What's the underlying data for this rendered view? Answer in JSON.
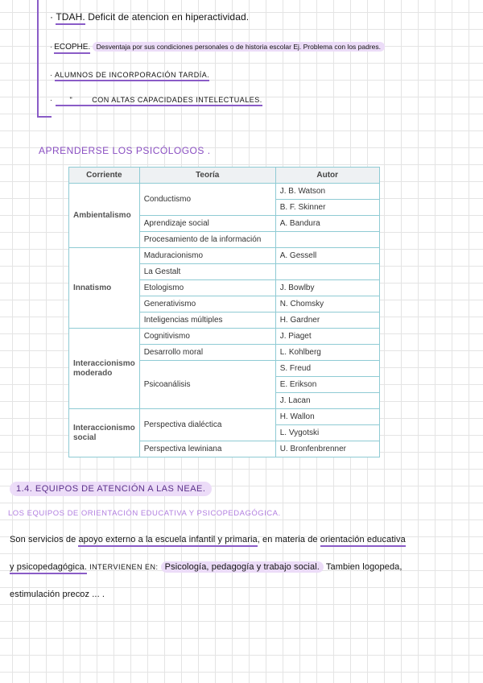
{
  "notes": {
    "line1": {
      "term": "TDAH.",
      "text": "Deficit de atencion en hiperactividad."
    },
    "line2": {
      "term": "ECOPHE.",
      "text": "Desventaja por sus condiciones personales o de historia escolar Ej. Problema con los padres."
    },
    "line3": "Alumnos de incorporación Tardía.",
    "line4": {
      "ditto": "\"",
      "text": "Con altas capacidades intelectuales."
    }
  },
  "section_title": "Aprenderse los psicólogos .",
  "table": {
    "headers": [
      "Corriente",
      "Teoría",
      "Autor"
    ],
    "groups": [
      {
        "corriente": "Ambientalismo",
        "rows": [
          {
            "teoria": "Conductismo",
            "autores": [
              "J. B. Watson",
              "B. F. Skinner"
            ]
          },
          {
            "teoria": "Aprendizaje social",
            "autores": [
              "A. Bandura"
            ]
          },
          {
            "teoria": "Procesamiento de la información",
            "autores": [
              ""
            ]
          }
        ]
      },
      {
        "corriente": "Innatismo",
        "rows": [
          {
            "teoria": "Maduracionismo",
            "autores": [
              "A. Gessell"
            ]
          },
          {
            "teoria": "La Gestalt",
            "autores": [
              ""
            ]
          },
          {
            "teoria": "Etologismo",
            "autores": [
              "J. Bowlby"
            ]
          },
          {
            "teoria": "Generativismo",
            "autores": [
              "N. Chomsky"
            ]
          },
          {
            "teoria": "Inteligencias múltiples",
            "autores": [
              "H. Gardner"
            ]
          }
        ]
      },
      {
        "corriente": "Interaccionismo moderado",
        "rows": [
          {
            "teoria": "Cognitivismo",
            "autores": [
              "J. Piaget"
            ]
          },
          {
            "teoria": "Desarrollo moral",
            "autores": [
              "L. Kohlberg"
            ]
          },
          {
            "teoria": "Psicoanálisis",
            "autores": [
              "S. Freud",
              "E. Erikson",
              "J. Lacan"
            ]
          }
        ]
      },
      {
        "corriente": "Interaccionismo social",
        "rows": [
          {
            "teoria": "Perspectiva dialéctica",
            "autores": [
              "H. Wallon",
              "L. Vygotski"
            ]
          },
          {
            "teoria": "Perspectiva lewiniana",
            "autores": [
              "U. Bronfenbrenner"
            ]
          }
        ]
      }
    ]
  },
  "heading_14": "1.4. Equipos de atención a las NEAE.",
  "subheading": "Los equipos de orientación educativa y psicopedagógica.",
  "paragraph": {
    "p1": "Son servicios de",
    "p1_ul": "apoyo externo a la escuela infantil y primaria",
    "p1_b": ", en materia de",
    "p1_ul2": "orientación educativa",
    "p2_ul": "y psicopedagógica.",
    "p2_a": "INTERVIENEN EN:",
    "p2_hl": "Psicología, pedagogía y trabajo social.",
    "p2_b": "Tambien logopeda,",
    "p3": "estimulación precoz ... ."
  },
  "colors": {
    "accent": "#8a5cc7",
    "highlight": "#ecdcf8",
    "table_border": "#8fcbd4"
  }
}
